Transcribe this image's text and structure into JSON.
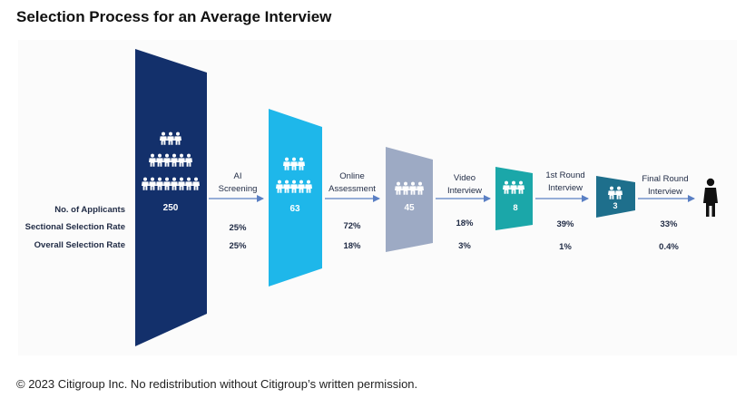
{
  "title": "Selection Process for an Average Interview",
  "footer": "© 2023 Citigroup Inc. No redistribution without Citigroup’s written permission.",
  "row_labels": {
    "applicants": "No. of Applicants",
    "sectional": "Sectional Selection Rate",
    "overall": "Overall Selection Rate"
  },
  "stages": [
    {
      "count": "250",
      "color": "#13306b"
    },
    {
      "count": "63",
      "color": "#1eb7ea"
    },
    {
      "count": "45",
      "color": "#9daac4"
    },
    {
      "count": "8",
      "color": "#1ba7a9"
    },
    {
      "count": "3",
      "color": "#1e6f8c"
    }
  ],
  "steps": [
    {
      "line1": "AI",
      "line2": "Screening",
      "sectional": "25%",
      "overall": "25%"
    },
    {
      "line1": "Online",
      "line2": "Assessment",
      "sectional": "72%",
      "overall": "18%"
    },
    {
      "line1": "Video",
      "line2": "Interview",
      "sectional": "18%",
      "overall": "3%"
    },
    {
      "line1": "1st Round",
      "line2": "Interview",
      "sectional": "39%",
      "overall": "1%"
    },
    {
      "line1": "Final Round",
      "line2": "Interview",
      "sectional": "33%",
      "overall": "0.4%"
    }
  ],
  "icons": {
    "people": "person-icon",
    "final": "person-icon"
  }
}
